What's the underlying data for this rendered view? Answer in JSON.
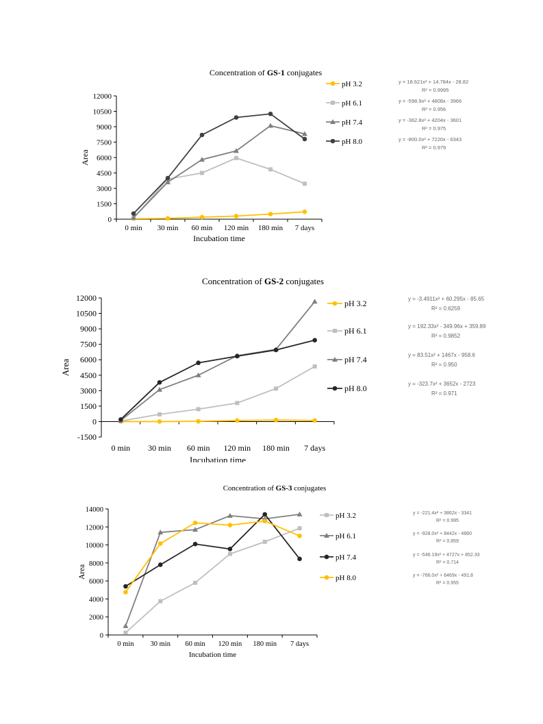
{
  "chart_data": [
    {
      "type": "line",
      "title_prefix": "Concentration of ",
      "title_bold": "GS-1",
      "title_suffix": " conjugates",
      "xlabel": "Incubation time",
      "ylabel": "Area",
      "categories": [
        "0 min",
        "30 min",
        "60 min",
        "120 min",
        "180 min",
        "7 days"
      ],
      "ylim": [
        0,
        12000
      ],
      "yticks": [
        0,
        1500,
        3000,
        4500,
        6000,
        7500,
        9000,
        10500,
        12000
      ],
      "ytick_labels": [
        "0",
        "1500",
        "3000",
        "4500",
        "6000",
        "7500",
        "9000",
        "10500",
        "12000"
      ],
      "legend_position": "right",
      "series": [
        {
          "name": "pH 3.2",
          "color": "#FFC000",
          "marker": "circle",
          "values": [
            50,
            80,
            200,
            300,
            500,
            720
          ],
          "equation": "y = 18.621x² + 14.784x - 28.82",
          "r2": "R² = 0.9995"
        },
        {
          "name": "pH 6.1",
          "color": "#BFBFBF",
          "marker": "square",
          "values": [
            100,
            3900,
            4500,
            5950,
            4850,
            3450
          ],
          "equation": "y = -598.9x² + 4808x - 3966",
          "r2": "R² = 0.956"
        },
        {
          "name": "pH 7.4",
          "color": "#7F7F7F",
          "marker": "triangle",
          "values": [
            150,
            3600,
            5800,
            6650,
            9100,
            8300
          ],
          "equation": "y = -362.8x² + 4204x - 3601",
          "r2": "R² = 0.975"
        },
        {
          "name": "pH 8.0",
          "color": "#404040",
          "marker": "circle",
          "values": [
            550,
            4000,
            8200,
            9900,
            10250,
            7800
          ],
          "equation": "y = -800.0x² + 7220x - 6343",
          "r2": "R² = 0.979"
        }
      ]
    },
    {
      "type": "line",
      "title_prefix": "Concentration of ",
      "title_bold": "GS-2",
      "title_suffix": " conjugates",
      "xlabel": "Incubation time",
      "ylabel": "Area",
      "categories": [
        "0 min",
        "30 min",
        "60 min",
        "120 min",
        "180 min",
        "7 days"
      ],
      "ylim": [
        -1500,
        12000
      ],
      "yticks": [
        -1500,
        0,
        1500,
        3000,
        4500,
        6000,
        7500,
        9000,
        10500,
        12000
      ],
      "ytick_labels": [
        "-1500",
        "0",
        "1500",
        "3000",
        "4500",
        "6000",
        "7500",
        "9000",
        "10500",
        "12000"
      ],
      "legend_position": "right",
      "series": [
        {
          "name": "pH 3.2",
          "color": "#FFC000",
          "marker": "circle",
          "values": [
            0,
            0,
            20,
            100,
            150,
            100
          ],
          "equation": "y = -3.4911x² + 60.295x - 85.65",
          "r2": "R² = 0.6259"
        },
        {
          "name": "pH 6.1",
          "color": "#BFBFBF",
          "marker": "square",
          "values": [
            50,
            700,
            1200,
            1800,
            3200,
            5350
          ],
          "equation": "y = 192.33x² - 349.96x + 359.89",
          "r2": "R² = 0.9852"
        },
        {
          "name": "pH 7.4",
          "color": "#7F7F7F",
          "marker": "triangle",
          "values": [
            100,
            3100,
            4500,
            6400,
            7000,
            11650
          ],
          "equation": "y = 83.51x² + 1467x - 958.6",
          "r2": "R² = 0.950"
        },
        {
          "name": "pH 8.0",
          "color": "#262626",
          "marker": "circle",
          "values": [
            200,
            3800,
            5700,
            6350,
            6950,
            7900
          ],
          "equation": "y = -323.7x² + 3652x - 2723",
          "r2": "R² = 0.971"
        }
      ]
    },
    {
      "type": "line",
      "title_prefix": "Concentration of ",
      "title_bold": "GS-3",
      "title_suffix": " conjugates",
      "xlabel": "Incubation time",
      "ylabel": "Area",
      "categories": [
        "0 min",
        "30 min",
        "60 min",
        "120 min",
        "180 min",
        "7 days"
      ],
      "ylim": [
        0,
        14000
      ],
      "yticks": [
        0,
        2000,
        4000,
        6000,
        8000,
        10000,
        12000,
        14000
      ],
      "ytick_labels": [
        "0",
        "2000",
        "4000",
        "6000",
        "8000",
        "10000",
        "12000",
        "14000"
      ],
      "legend_position": "right",
      "series": [
        {
          "name": "pH 3.2",
          "color": "#BFBFBF",
          "marker": "square",
          "values": [
            250,
            3750,
            5800,
            9000,
            10350,
            11850
          ],
          "equation": "y = -221.4x² + 3862x - 3341",
          "r2": "R² = 0.995"
        },
        {
          "name": "pH 6.1",
          "color": "#7F7F7F",
          "marker": "triangle",
          "values": [
            1000,
            11400,
            11700,
            13250,
            12900,
            13400
          ],
          "equation": "y = -928.0x² + 8442x - 4860",
          "r2": "R² = 0.859"
        },
        {
          "name": "pH 7.4",
          "color": "#262626",
          "marker": "circle",
          "values": [
            5400,
            7800,
            10100,
            9550,
            13400,
            8450
          ],
          "equation": "y = -546.19x² + 4727x + 852.33",
          "r2": "R² = 0.714"
        },
        {
          "name": "pH 8.0",
          "color": "#FFC000",
          "marker": "circle",
          "values": [
            4750,
            10150,
            12450,
            12200,
            12650,
            11000
          ],
          "equation": "y = -766.0x² + 6469x - 491.8",
          "r2": "R² = 0.955"
        }
      ]
    }
  ]
}
